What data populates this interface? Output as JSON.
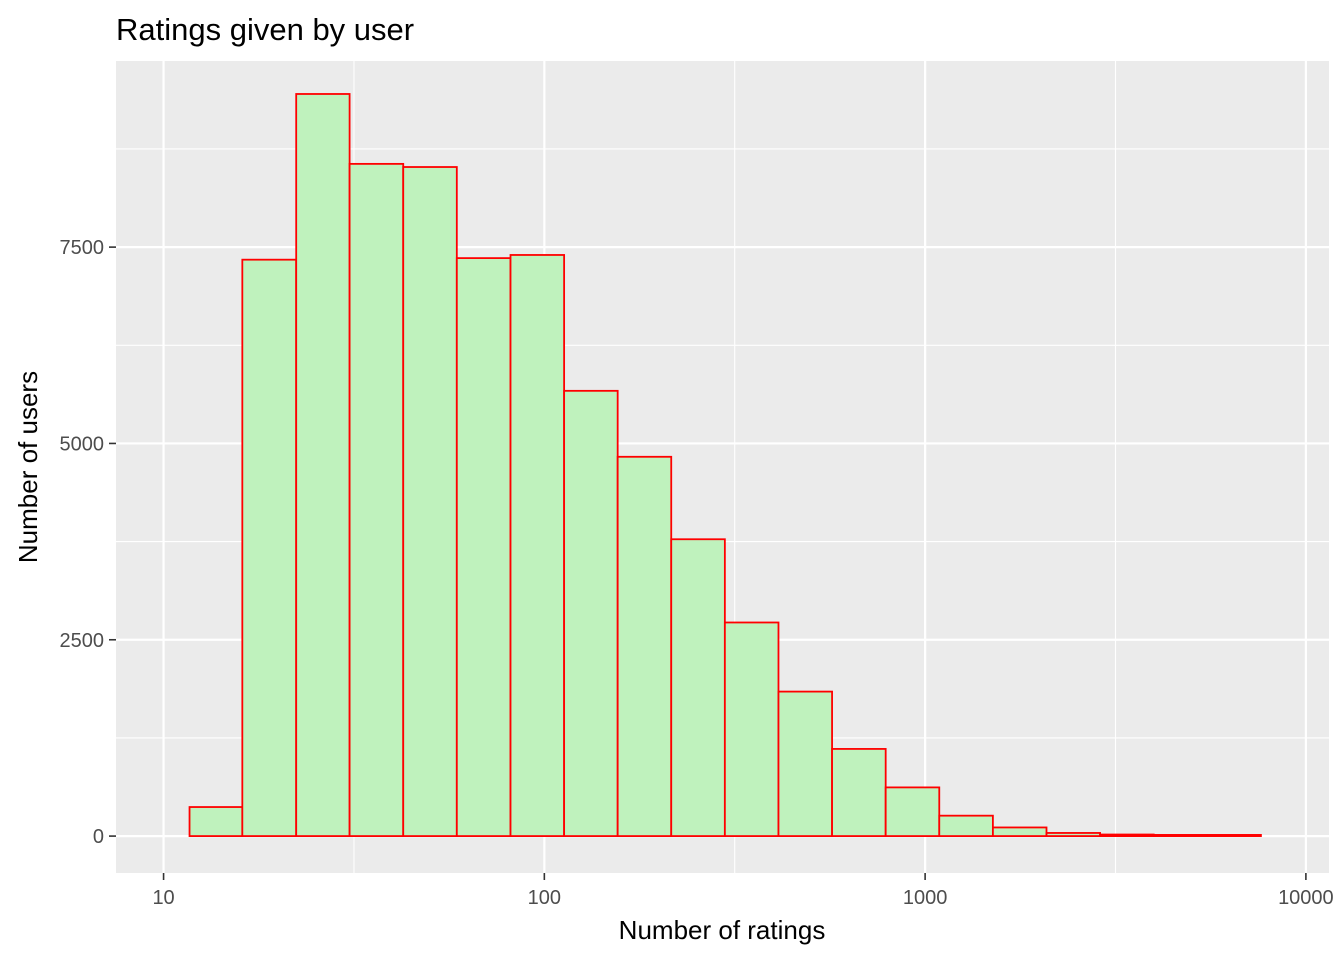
{
  "chart_data": {
    "type": "bar",
    "title": "Ratings given by user",
    "xlabel": "Number of ratings",
    "ylabel": "Number of users",
    "x_scale": "log10",
    "x_ticks": [
      10,
      100,
      1000,
      10000
    ],
    "x_tick_labels": [
      "10",
      "100",
      "1000",
      "10000"
    ],
    "y_ticks": [
      0,
      2500,
      5000,
      7500
    ],
    "y_tick_labels": [
      "0",
      "2500",
      "5000",
      "7500"
    ],
    "xlim": [
      7.5,
      11500
    ],
    "ylim": [
      -470,
      9870
    ],
    "grid": true,
    "legend": "none",
    "colors": {
      "fill": "#bff2bd",
      "stroke": "#ff0000",
      "panel": "#ebebeb",
      "grid": "#ffffff"
    },
    "bins": [
      {
        "x0": 11.7,
        "x1": 16.1,
        "count": 370
      },
      {
        "x0": 16.1,
        "x1": 22.3,
        "count": 7340
      },
      {
        "x0": 22.3,
        "x1": 30.8,
        "count": 9450
      },
      {
        "x0": 30.8,
        "x1": 42.6,
        "count": 8560
      },
      {
        "x0": 42.6,
        "x1": 58.9,
        "count": 8520
      },
      {
        "x0": 58.9,
        "x1": 81.5,
        "count": 7360
      },
      {
        "x0": 81.5,
        "x1": 112.7,
        "count": 7400
      },
      {
        "x0": 112.7,
        "x1": 155.8,
        "count": 5670
      },
      {
        "x0": 155.8,
        "x1": 215.4,
        "count": 4830
      },
      {
        "x0": 215.4,
        "x1": 297.9,
        "count": 3780
      },
      {
        "x0": 297.9,
        "x1": 412.0,
        "count": 2720
      },
      {
        "x0": 412.0,
        "x1": 569.7,
        "count": 1840
      },
      {
        "x0": 569.7,
        "x1": 787.8,
        "count": 1110
      },
      {
        "x0": 787.8,
        "x1": 1089.4,
        "count": 620
      },
      {
        "x0": 1089.4,
        "x1": 1506.6,
        "count": 260
      },
      {
        "x0": 1506.6,
        "x1": 2083.4,
        "count": 110
      },
      {
        "x0": 2083.4,
        "x1": 2881.1,
        "count": 40
      },
      {
        "x0": 2881.1,
        "x1": 3984.2,
        "count": 20
      },
      {
        "x0": 3984.2,
        "x1": 5509.5,
        "count": 15
      },
      {
        "x0": 5509.5,
        "x1": 7618.8,
        "count": 15
      }
    ]
  }
}
